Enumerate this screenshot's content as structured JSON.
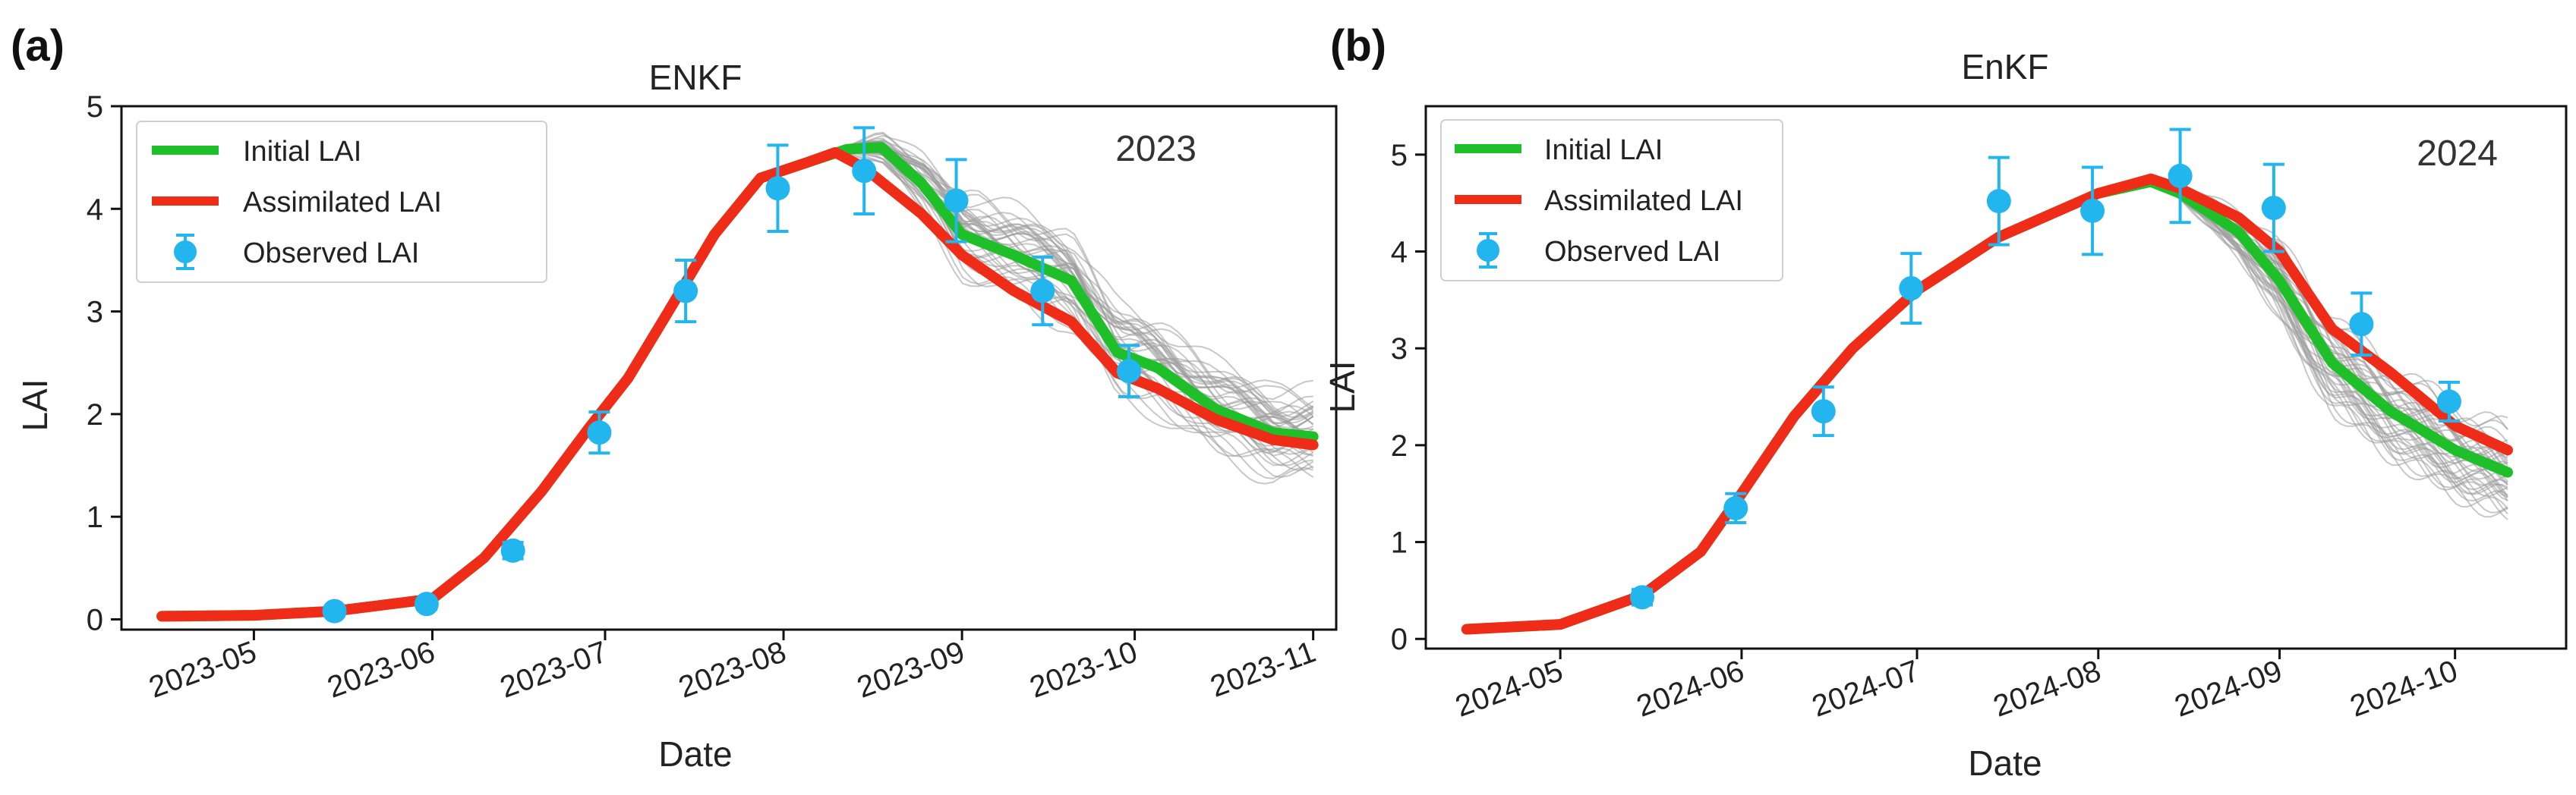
{
  "colors": {
    "initial": "#1fbf2a",
    "assimilated": "#ee2c18",
    "observed": "#22b5ee",
    "ensemble": "#9a9a9a"
  },
  "chart_data": [
    {
      "type": "line",
      "panel_label": "(a)",
      "title": "ENKF",
      "year_label": "2023",
      "xlabel": "Date",
      "ylabel": "LAI",
      "ylim": [
        -0.1,
        5.0
      ],
      "yticks": [
        "0",
        "1",
        "2",
        "3",
        "4",
        "5"
      ],
      "xlim": [
        "2023-04-08",
        "2023-11-05"
      ],
      "xticks": [
        "2023-05",
        "2023-06",
        "2023-07",
        "2023-08",
        "2023-09",
        "2023-10",
        "2023-11"
      ],
      "legend": [
        "Initial LAI",
        "Assimilated LAI",
        "Observed LAI"
      ],
      "legend_position": "top-left",
      "ensemble_members": 40,
      "ensemble_spread_start": "2023-08-10",
      "initial_lai": {
        "x": [
          "2023-04-15",
          "2023-05-01",
          "2023-05-15",
          "2023-06-01",
          "2023-06-10",
          "2023-06-20",
          "2023-06-28",
          "2023-07-05",
          "2023-07-12",
          "2023-07-20",
          "2023-07-28",
          "2023-08-05",
          "2023-08-12",
          "2023-08-18",
          "2023-08-25",
          "2023-09-01",
          "2023-09-10",
          "2023-09-20",
          "2023-09-28",
          "2023-10-05",
          "2023-10-15",
          "2023-10-25",
          "2023-11-01"
        ],
        "y": [
          0.03,
          0.04,
          0.08,
          0.2,
          0.6,
          1.25,
          1.85,
          2.35,
          3.0,
          3.75,
          4.3,
          4.45,
          4.58,
          4.6,
          4.25,
          3.75,
          3.55,
          3.3,
          2.6,
          2.45,
          2.05,
          1.82,
          1.78
        ]
      },
      "assimilated_lai": {
        "x": [
          "2023-04-15",
          "2023-05-01",
          "2023-05-15",
          "2023-06-01",
          "2023-06-10",
          "2023-06-20",
          "2023-06-28",
          "2023-07-05",
          "2023-07-12",
          "2023-07-20",
          "2023-07-28",
          "2023-08-05",
          "2023-08-10",
          "2023-08-15",
          "2023-08-25",
          "2023-09-01",
          "2023-09-10",
          "2023-09-20",
          "2023-09-28",
          "2023-10-05",
          "2023-10-15",
          "2023-10-25",
          "2023-11-01"
        ],
        "y": [
          0.03,
          0.04,
          0.08,
          0.2,
          0.6,
          1.25,
          1.85,
          2.35,
          3.0,
          3.75,
          4.3,
          4.45,
          4.55,
          4.4,
          3.95,
          3.55,
          3.2,
          2.9,
          2.4,
          2.25,
          1.95,
          1.75,
          1.7
        ]
      },
      "observed_lai": {
        "x": [
          "2023-05-15",
          "2023-05-31",
          "2023-06-15",
          "2023-06-30",
          "2023-07-15",
          "2023-07-31",
          "2023-08-15",
          "2023-08-31",
          "2023-09-15",
          "2023-09-30"
        ],
        "y": [
          0.08,
          0.15,
          0.67,
          1.82,
          3.2,
          4.2,
          4.37,
          4.08,
          3.2,
          2.42
        ],
        "err": [
          0.05,
          0.05,
          0.08,
          0.2,
          0.3,
          0.42,
          0.42,
          0.4,
          0.33,
          0.25
        ]
      }
    },
    {
      "type": "line",
      "panel_label": "(b)",
      "title": "EnKF",
      "year_label": "2024",
      "xlabel": "Date",
      "ylabel": "LAI",
      "ylim": [
        -0.1,
        5.5
      ],
      "yticks": [
        "0",
        "1",
        "2",
        "3",
        "4",
        "5"
      ],
      "xlim": [
        "2024-04-08",
        "2024-10-20"
      ],
      "xticks": [
        "2024-05",
        "2024-06",
        "2024-07",
        "2024-08",
        "2024-09",
        "2024-10"
      ],
      "legend": [
        "Initial LAI",
        "Assimilated LAI",
        "Observed LAI"
      ],
      "legend_position": "top-left",
      "ensemble_members": 40,
      "ensemble_spread_start": "2024-08-12",
      "initial_lai": {
        "x": [
          "2024-04-15",
          "2024-05-01",
          "2024-05-15",
          "2024-05-25",
          "2024-06-01",
          "2024-06-10",
          "2024-06-20",
          "2024-07-01",
          "2024-07-15",
          "2024-08-01",
          "2024-08-10",
          "2024-08-15",
          "2024-08-25",
          "2024-09-01",
          "2024-09-10",
          "2024-09-20",
          "2024-10-01",
          "2024-10-10"
        ],
        "y": [
          0.1,
          0.15,
          0.45,
          0.9,
          1.5,
          2.3,
          3.0,
          3.6,
          4.15,
          4.6,
          4.72,
          4.6,
          4.2,
          3.7,
          2.85,
          2.35,
          1.95,
          1.72
        ]
      },
      "assimilated_lai": {
        "x": [
          "2024-04-15",
          "2024-05-01",
          "2024-05-15",
          "2024-05-25",
          "2024-06-01",
          "2024-06-10",
          "2024-06-20",
          "2024-07-01",
          "2024-07-15",
          "2024-08-01",
          "2024-08-10",
          "2024-08-15",
          "2024-08-25",
          "2024-09-01",
          "2024-09-10",
          "2024-09-20",
          "2024-10-01",
          "2024-10-10"
        ],
        "y": [
          0.1,
          0.15,
          0.45,
          0.9,
          1.5,
          2.3,
          3.0,
          3.6,
          4.15,
          4.6,
          4.75,
          4.65,
          4.35,
          4.0,
          3.2,
          2.75,
          2.2,
          1.95
        ]
      },
      "observed_lai": {
        "x": [
          "2024-05-15",
          "2024-05-31",
          "2024-06-15",
          "2024-06-30",
          "2024-07-15",
          "2024-07-31",
          "2024-08-15",
          "2024-08-31",
          "2024-09-15",
          "2024-09-30"
        ],
        "y": [
          0.43,
          1.35,
          2.35,
          3.62,
          4.52,
          4.42,
          4.78,
          4.45,
          3.25,
          2.45
        ],
        "err": [
          0.08,
          0.15,
          0.25,
          0.36,
          0.45,
          0.45,
          0.48,
          0.45,
          0.32,
          0.2
        ]
      }
    }
  ]
}
